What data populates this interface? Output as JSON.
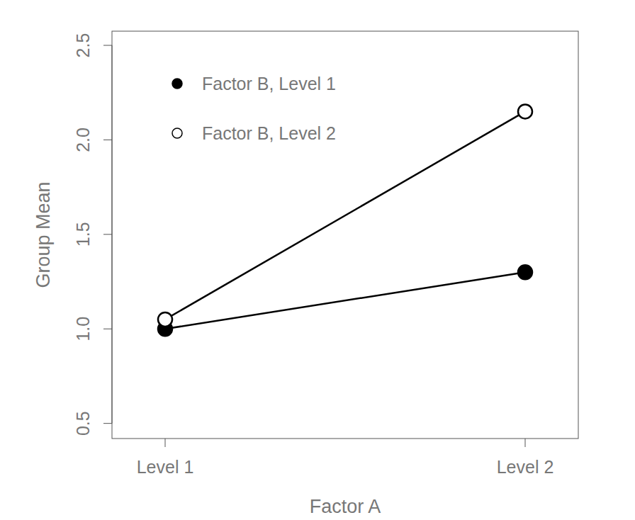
{
  "chart_data": {
    "type": "line",
    "x_label": "Factor A",
    "y_label": "Group Mean",
    "categories": [
      "Level 1",
      "Level 2"
    ],
    "series": [
      {
        "name": "Factor B, Level 1",
        "color": "#000000",
        "marker": "filled",
        "values": [
          1.0,
          1.3
        ]
      },
      {
        "name": "Factor B, Level 2",
        "color": "#000000",
        "marker": "open",
        "values": [
          1.05,
          2.15
        ]
      }
    ],
    "ylim": [
      0.42,
      2.575
    ],
    "yticks": [
      {
        "value": 0.5,
        "label": "0.5"
      },
      {
        "value": 1.0,
        "label": "1.0"
      },
      {
        "value": 1.5,
        "label": "1.5"
      },
      {
        "value": 2.0,
        "label": "2.0"
      },
      {
        "value": 2.5,
        "label": "2.5"
      }
    ],
    "legend": "topleft",
    "grid": false
  }
}
